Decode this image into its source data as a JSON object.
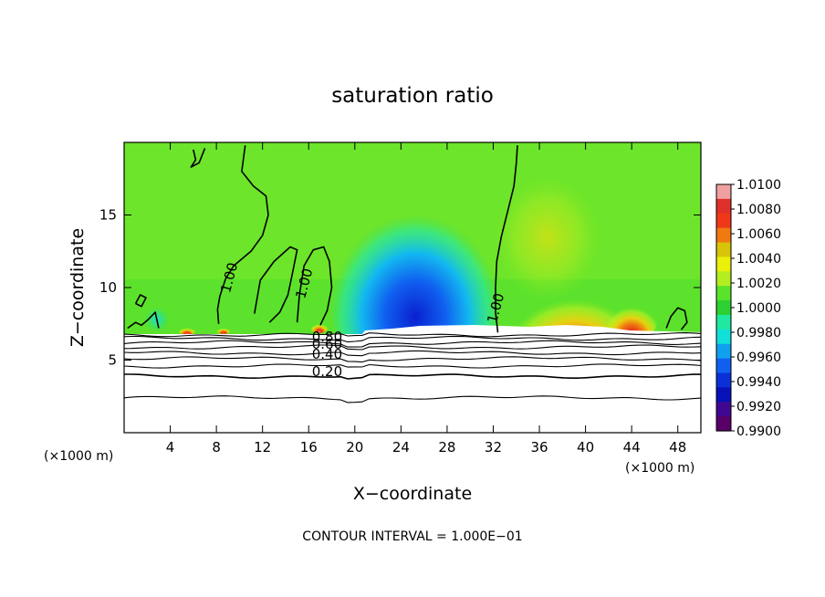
{
  "chart_data": {
    "type": "contour",
    "title": "saturation ratio",
    "xlabel": "X−coordinate",
    "ylabel": "Z−coordinate",
    "x_unit": "(×1000 m)",
    "y_unit": "(×1000 m)",
    "xlim": [
      0,
      50
    ],
    "ylim": [
      0,
      20
    ],
    "x_ticks": [
      4,
      8,
      12,
      16,
      20,
      24,
      28,
      32,
      36,
      40,
      44,
      48
    ],
    "y_ticks": [
      5,
      10,
      15
    ],
    "contour_interval_text": "CONTOUR INTERVAL = 1.000E−01",
    "contour_labels": [
      {
        "text": "1.00",
        "x": 9.5,
        "z": 10.6
      },
      {
        "text": "1.00",
        "x": 16.0,
        "z": 10.2
      },
      {
        "text": "1.00",
        "x": 32.6,
        "z": 8.5
      },
      {
        "text": "0.80",
        "x": 17.6,
        "z": 6.3
      },
      {
        "text": "0.60",
        "x": 17.6,
        "z": 5.8
      },
      {
        "text": "0.40",
        "x": 17.6,
        "z": 5.1
      },
      {
        "text": "0.20",
        "x": 17.6,
        "z": 3.9
      }
    ],
    "lower_contour_levels_z": [
      2.4,
      3.9,
      4.6,
      5.1,
      5.5,
      5.9,
      6.2,
      6.5,
      6.75
    ],
    "colorbar": {
      "levels": [
        "1.0100",
        "1.0080",
        "1.0060",
        "1.0040",
        "1.0020",
        "1.0000",
        "0.9980",
        "0.9960",
        "0.9940",
        "0.9920",
        "0.9900"
      ],
      "colors": [
        "#f0a0a0",
        "#e0302a",
        "#f03818",
        "#f07a10",
        "#d8c408",
        "#eaf00a",
        "#b4ee20",
        "#58e42a",
        "#2cd030",
        "#20e8a0",
        "#10e0d8",
        "#10a0f0",
        "#1060f0",
        "#0c30d8",
        "#0810b8",
        "#400890",
        "#580068"
      ]
    },
    "saturated_color": "#58e42a",
    "dry_layer_color": "#ffffff"
  }
}
